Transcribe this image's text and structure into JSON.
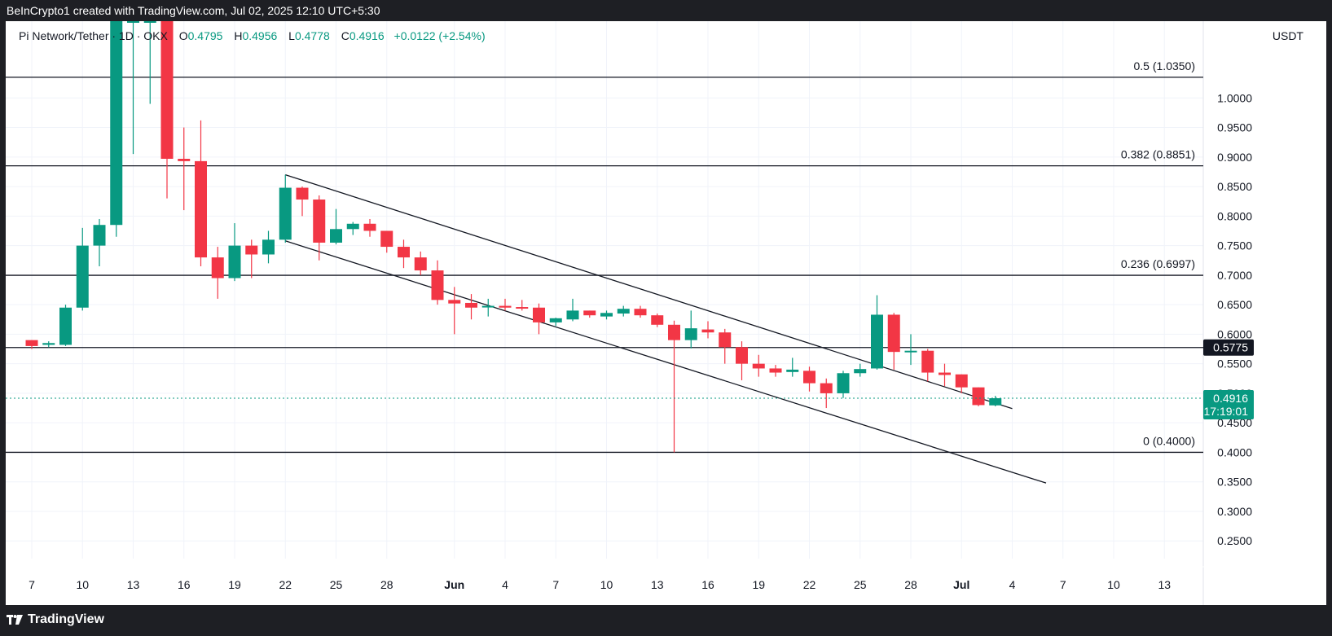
{
  "header_text": "BeInCrypto1 created with TradingView.com, Jul 02, 2025 12:10 UTC+5:30",
  "footer_brand": "TradingView",
  "legend": {
    "symbol": "Pi Network/Tether · 1D · OKX",
    "o_label": "O",
    "o_value": "0.4795",
    "h_label": "H",
    "h_value": "0.4956",
    "l_label": "L",
    "l_value": "0.4778",
    "c_label": "C",
    "c_value": "0.4916",
    "change": "+0.0122 (+2.54%)"
  },
  "currency": "USDT",
  "colors": {
    "up": "#089981",
    "down": "#f23645",
    "grid": "#f0f3fa",
    "line": "#131722",
    "price_line": "#089981",
    "badge_dark": "#131722"
  },
  "chart_data": {
    "type": "candlestick",
    "ylim": [
      0.22,
      1.13
    ],
    "y_ticks": [
      "1.0000",
      "0.9500",
      "0.9000",
      "0.8500",
      "0.8000",
      "0.7500",
      "0.7000",
      "0.6500",
      "0.6000",
      "0.5500",
      "0.5000",
      "0.4500",
      "0.4000",
      "0.3500",
      "0.3000",
      "0.2500"
    ],
    "y_tick_values": [
      1.0,
      0.95,
      0.9,
      0.85,
      0.8,
      0.75,
      0.7,
      0.65,
      0.6,
      0.55,
      0.5,
      0.45,
      0.4,
      0.35,
      0.3,
      0.25
    ],
    "x_ticks": [
      {
        "label": "7",
        "d": 0
      },
      {
        "label": "10",
        "d": 3
      },
      {
        "label": "13",
        "d": 6
      },
      {
        "label": "16",
        "d": 9
      },
      {
        "label": "19",
        "d": 12
      },
      {
        "label": "22",
        "d": 15
      },
      {
        "label": "25",
        "d": 18
      },
      {
        "label": "28",
        "d": 21
      },
      {
        "label": "Jun",
        "d": 25,
        "bold": true
      },
      {
        "label": "4",
        "d": 28
      },
      {
        "label": "7",
        "d": 31
      },
      {
        "label": "10",
        "d": 34
      },
      {
        "label": "13",
        "d": 37
      },
      {
        "label": "16",
        "d": 40
      },
      {
        "label": "19",
        "d": 43
      },
      {
        "label": "22",
        "d": 46
      },
      {
        "label": "25",
        "d": 49
      },
      {
        "label": "28",
        "d": 52
      },
      {
        "label": "Jul",
        "d": 55,
        "bold": true
      },
      {
        "label": "4",
        "d": 58
      },
      {
        "label": "7",
        "d": 61
      },
      {
        "label": "10",
        "d": 64
      },
      {
        "label": "13",
        "d": 67
      }
    ],
    "candles": [
      [
        0.59,
        0.59,
        0.575,
        0.58
      ],
      [
        0.582,
        0.588,
        0.578,
        0.585
      ],
      [
        0.582,
        0.65,
        0.58,
        0.645
      ],
      [
        0.645,
        0.78,
        0.64,
        0.75
      ],
      [
        0.75,
        0.795,
        0.715,
        0.785
      ],
      [
        0.785,
        1.13,
        0.765,
        1.13
      ],
      [
        1.13,
        1.13,
        0.905,
        1.13
      ],
      [
        1.13,
        1.13,
        0.99,
        1.13
      ],
      [
        1.13,
        1.13,
        0.83,
        0.897
      ],
      [
        0.897,
        0.95,
        0.81,
        0.893
      ],
      [
        0.893,
        0.962,
        0.715,
        0.73
      ],
      [
        0.73,
        0.748,
        0.66,
        0.695
      ],
      [
        0.695,
        0.788,
        0.69,
        0.75
      ],
      [
        0.75,
        0.76,
        0.695,
        0.735
      ],
      [
        0.735,
        0.775,
        0.72,
        0.76
      ],
      [
        0.76,
        0.87,
        0.755,
        0.848
      ],
      [
        0.848,
        0.85,
        0.8,
        0.828
      ],
      [
        0.828,
        0.835,
        0.725,
        0.755
      ],
      [
        0.755,
        0.812,
        0.752,
        0.778
      ],
      [
        0.778,
        0.79,
        0.768,
        0.787
      ],
      [
        0.787,
        0.795,
        0.765,
        0.775
      ],
      [
        0.775,
        0.775,
        0.738,
        0.748
      ],
      [
        0.748,
        0.76,
        0.712,
        0.73
      ],
      [
        0.73,
        0.74,
        0.7,
        0.708
      ],
      [
        0.708,
        0.725,
        0.65,
        0.658
      ],
      [
        0.658,
        0.68,
        0.6,
        0.652
      ],
      [
        0.653,
        0.668,
        0.625,
        0.645
      ],
      [
        0.646,
        0.66,
        0.63,
        0.648
      ],
      [
        0.648,
        0.66,
        0.64,
        0.645
      ],
      [
        0.646,
        0.658,
        0.64,
        0.644
      ],
      [
        0.645,
        0.652,
        0.6,
        0.62
      ],
      [
        0.62,
        0.628,
        0.614,
        0.627
      ],
      [
        0.625,
        0.66,
        0.622,
        0.64
      ],
      [
        0.64,
        0.64,
        0.628,
        0.632
      ],
      [
        0.63,
        0.64,
        0.625,
        0.636
      ],
      [
        0.635,
        0.648,
        0.63,
        0.643
      ],
      [
        0.643,
        0.648,
        0.628,
        0.632
      ],
      [
        0.632,
        0.635,
        0.612,
        0.616
      ],
      [
        0.616,
        0.623,
        0.4,
        0.59
      ],
      [
        0.59,
        0.64,
        0.576,
        0.61
      ],
      [
        0.608,
        0.622,
        0.593,
        0.603
      ],
      [
        0.603,
        0.609,
        0.55,
        0.578
      ],
      [
        0.578,
        0.588,
        0.522,
        0.55
      ],
      [
        0.55,
        0.565,
        0.528,
        0.542
      ],
      [
        0.542,
        0.548,
        0.528,
        0.535
      ],
      [
        0.536,
        0.56,
        0.528,
        0.54
      ],
      [
        0.538,
        0.545,
        0.503,
        0.517
      ],
      [
        0.517,
        0.525,
        0.475,
        0.5
      ],
      [
        0.5,
        0.538,
        0.492,
        0.534
      ],
      [
        0.534,
        0.55,
        0.528,
        0.541
      ],
      [
        0.542,
        0.666,
        0.54,
        0.633
      ],
      [
        0.633,
        0.636,
        0.54,
        0.57
      ],
      [
        0.57,
        0.6,
        0.548,
        0.572
      ],
      [
        0.572,
        0.575,
        0.52,
        0.535
      ],
      [
        0.535,
        0.55,
        0.512,
        0.531
      ],
      [
        0.532,
        0.532,
        0.5,
        0.51
      ],
      [
        0.51,
        0.51,
        0.478,
        0.48
      ],
      [
        0.4795,
        0.4956,
        0.4778,
        0.4916
      ]
    ],
    "fib_levels": [
      {
        "label": "0.5 (1.0350)",
        "value": 1.035
      },
      {
        "label": "0.382 (0.8851)",
        "value": 0.8851
      },
      {
        "label": "0.236 (0.6997)",
        "value": 0.6997
      },
      {
        "label": "0 (0.4000)",
        "value": 0.4
      }
    ],
    "support_level": {
      "label": "0.5775",
      "value": 0.5775
    },
    "price_badge": {
      "price": "0.4916",
      "countdown": "17:19:01",
      "value": 0.4916
    },
    "channel_upper": [
      [
        15,
        0.87
      ],
      [
        58,
        0.474
      ]
    ],
    "channel_lower": [
      [
        15,
        0.758
      ],
      [
        60,
        0.348
      ]
    ]
  }
}
